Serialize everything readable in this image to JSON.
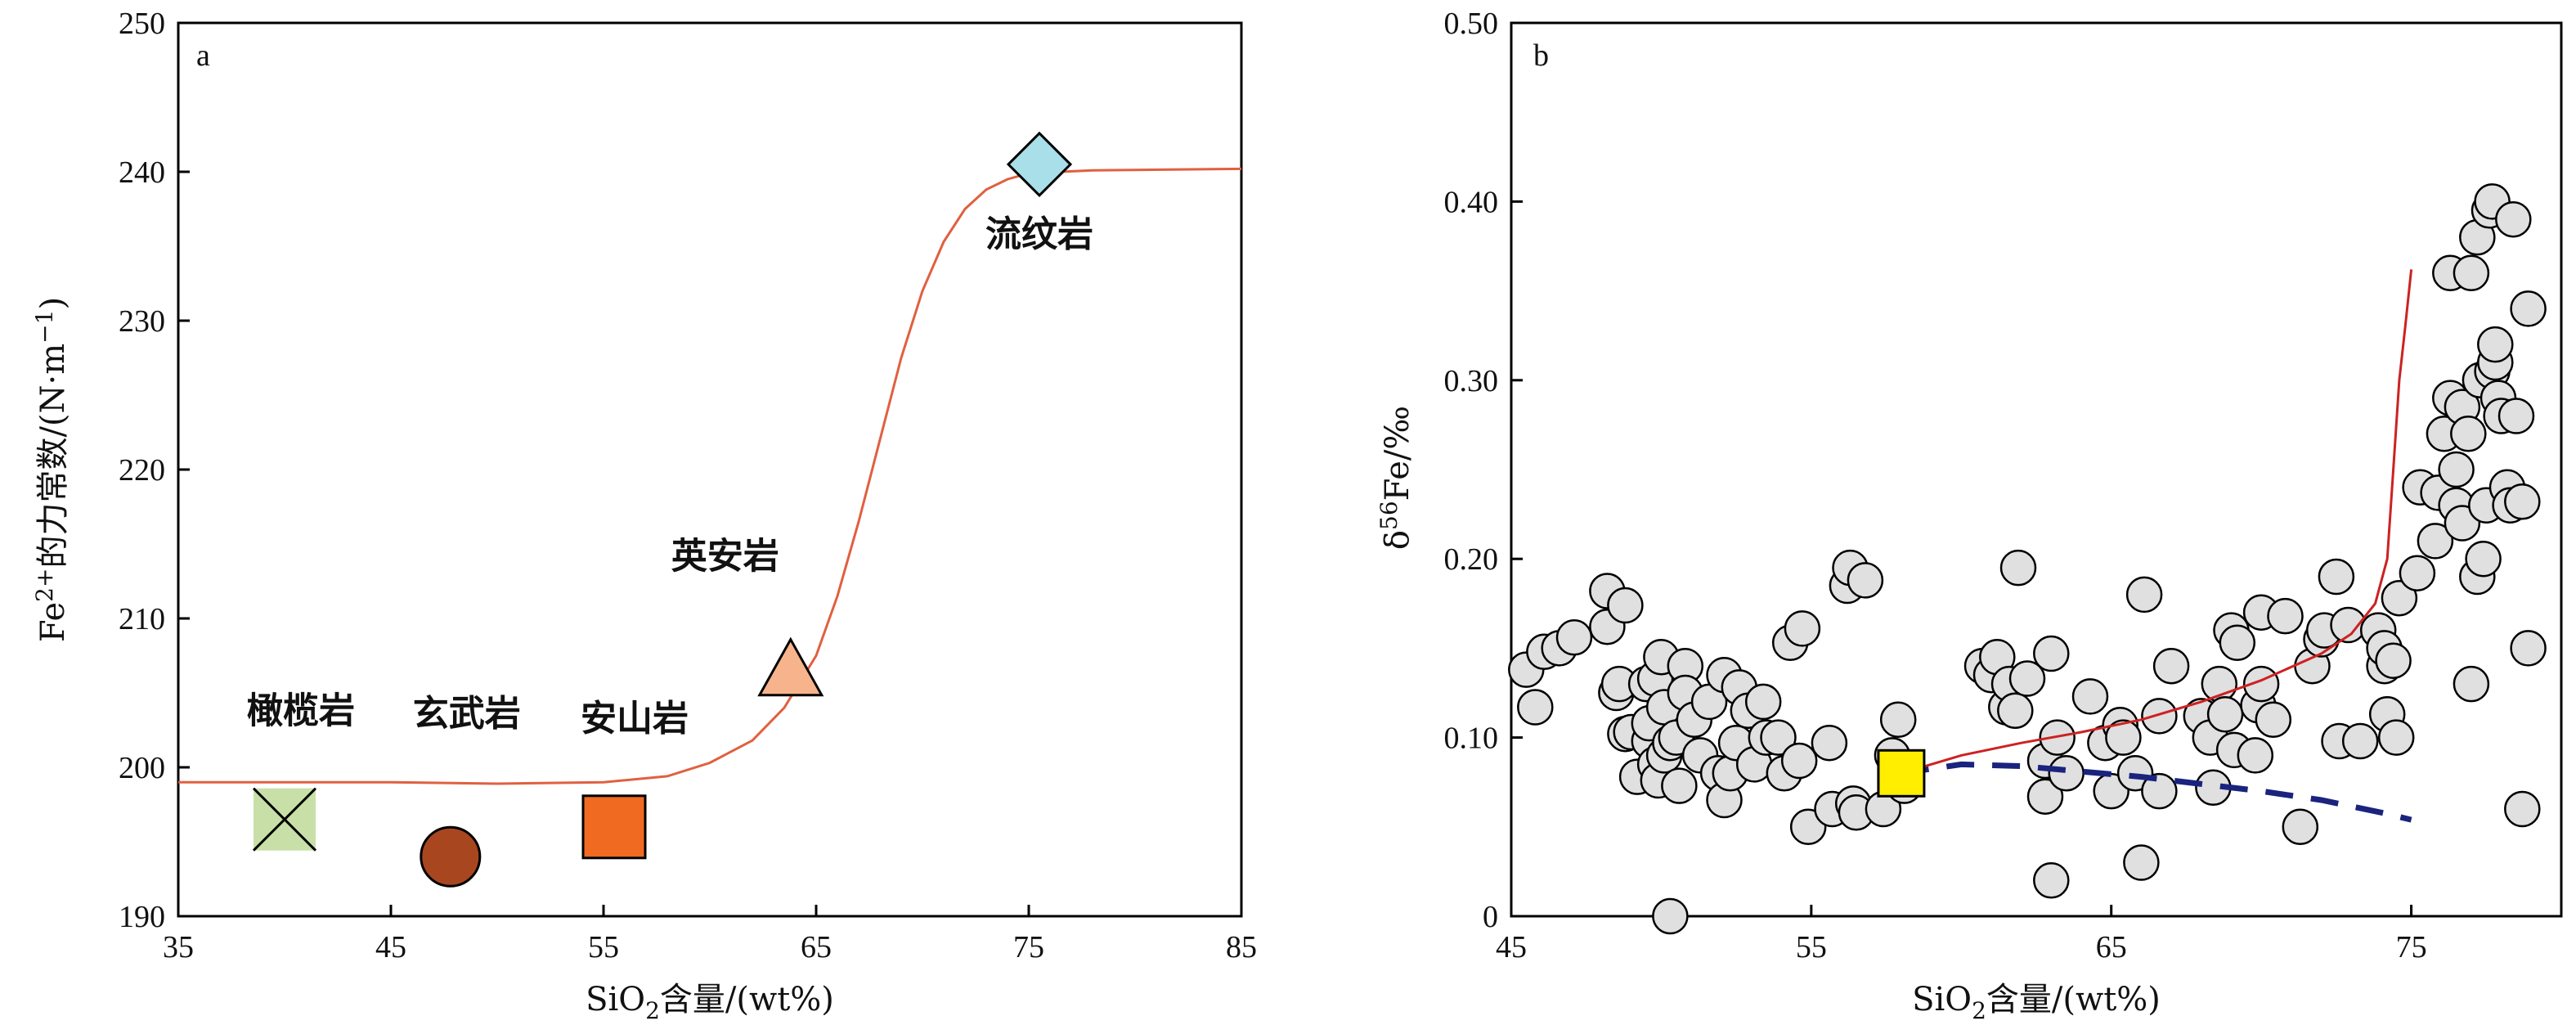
{
  "chart_data": [
    {
      "panel": "a",
      "type": "scatter",
      "xlabel_parts": [
        "SiO",
        "2",
        "含量/(wt%)"
      ],
      "ylabel_parts": [
        "Fe",
        "2+",
        "的力常数/(N·m",
        "−1",
        ")"
      ],
      "xlim": [
        35,
        85
      ],
      "ylim": [
        190,
        250
      ],
      "xticks": [
        35,
        45,
        55,
        65,
        75,
        85
      ],
      "yticks": [
        190,
        200,
        210,
        220,
        230,
        240,
        250
      ],
      "grid": false,
      "points": [
        {
          "label": "橄榄岩",
          "x": 40,
          "y": 196.5,
          "marker": "box-x",
          "color": "#c8e0a8"
        },
        {
          "label": "玄武岩",
          "x": 47.8,
          "y": 194,
          "marker": "circle",
          "color": "#a8471f"
        },
        {
          "label": "安山岩",
          "x": 55.5,
          "y": 196,
          "marker": "square",
          "color": "#f06a22"
        },
        {
          "label": "英安岩",
          "x": 63.8,
          "y": 206.5,
          "marker": "triangle",
          "color": "#f7b48c"
        },
        {
          "label": "流纹岩",
          "x": 75.5,
          "y": 240.5,
          "marker": "diamond",
          "color": "#a8dfe8"
        }
      ],
      "curve": {
        "color": "#e06040",
        "points": [
          [
            35,
            199
          ],
          [
            45,
            199
          ],
          [
            50,
            198.9
          ],
          [
            55,
            199
          ],
          [
            58,
            199.4
          ],
          [
            60,
            200.3
          ],
          [
            62,
            201.8
          ],
          [
            63.5,
            204
          ],
          [
            65,
            207.5
          ],
          [
            66,
            211.5
          ],
          [
            67,
            216.5
          ],
          [
            68,
            222
          ],
          [
            69,
            227.5
          ],
          [
            70,
            232
          ],
          [
            71,
            235.3
          ],
          [
            72,
            237.5
          ],
          [
            73,
            238.8
          ],
          [
            74,
            239.5
          ],
          [
            75,
            239.9
          ],
          [
            78,
            240.1
          ],
          [
            85,
            240.2
          ]
        ]
      }
    },
    {
      "panel": "b",
      "type": "scatter",
      "xlabel_parts": [
        "SiO",
        "2",
        "含量/(wt%)"
      ],
      "ylabel_parts": [
        "δ",
        "56",
        "Fe/‰"
      ],
      "xlim": [
        45,
        80
      ],
      "ylim": [
        0,
        0.5
      ],
      "xticks": [
        45,
        55,
        65,
        75
      ],
      "yticks": [
        0,
        0.1,
        0.2,
        0.3,
        0.4,
        0.5
      ],
      "ytick_labels": [
        "0",
        "0.10",
        "0.20",
        "0.30",
        "0.40",
        "0.50"
      ],
      "grid": false,
      "highlight": {
        "x": 58,
        "y": 0.08,
        "marker": "square",
        "color": "#ffee00"
      },
      "red_curve": {
        "color": "#cc2222",
        "points": [
          [
            58,
            0.08
          ],
          [
            60,
            0.09
          ],
          [
            62,
            0.097
          ],
          [
            64,
            0.103
          ],
          [
            66,
            0.11
          ],
          [
            68,
            0.12
          ],
          [
            70,
            0.132
          ],
          [
            72,
            0.147
          ],
          [
            73,
            0.158
          ],
          [
            73.8,
            0.175
          ],
          [
            74.2,
            0.2
          ],
          [
            74.4,
            0.25
          ],
          [
            74.6,
            0.3
          ],
          [
            74.8,
            0.33
          ],
          [
            75,
            0.362
          ]
        ]
      },
      "blue_dashed": {
        "color": "#1a237e",
        "points": [
          [
            58,
            0.08
          ],
          [
            60,
            0.085
          ],
          [
            62,
            0.084
          ],
          [
            64,
            0.081
          ],
          [
            66,
            0.078
          ],
          [
            68,
            0.074
          ],
          [
            70,
            0.07
          ],
          [
            72,
            0.065
          ],
          [
            74,
            0.058
          ],
          [
            75,
            0.054
          ]
        ]
      },
      "points": [
        [
          45.5,
          0.138
        ],
        [
          45.8,
          0.117
        ],
        [
          46.1,
          0.148
        ],
        [
          46.6,
          0.15
        ],
        [
          47.1,
          0.156
        ],
        [
          48.2,
          0.162
        ],
        [
          48.2,
          0.182
        ],
        [
          48.5,
          0.125
        ],
        [
          48.6,
          0.13
        ],
        [
          48.8,
          0.174
        ],
        [
          48.8,
          0.102
        ],
        [
          49.0,
          0.103
        ],
        [
          49.2,
          0.078
        ],
        [
          49.5,
          0.13
        ],
        [
          49.6,
          0.098
        ],
        [
          49.6,
          0.108
        ],
        [
          49.8,
          0.085
        ],
        [
          49.8,
          0.133
        ],
        [
          49.9,
          0.076
        ],
        [
          50.0,
          0.145
        ],
        [
          50.1,
          0.09
        ],
        [
          50.1,
          0.117
        ],
        [
          50.3,
          0.097
        ],
        [
          50.3,
          0.0
        ],
        [
          50.5,
          0.1
        ],
        [
          50.6,
          0.073
        ],
        [
          50.8,
          0.14
        ],
        [
          50.8,
          0.125
        ],
        [
          51.1,
          0.11
        ],
        [
          51.3,
          0.09
        ],
        [
          51.6,
          0.12
        ],
        [
          51.9,
          0.08
        ],
        [
          52.1,
          0.135
        ],
        [
          52.1,
          0.065
        ],
        [
          52.3,
          0.08
        ],
        [
          52.5,
          0.097
        ],
        [
          52.6,
          0.128
        ],
        [
          52.9,
          0.115
        ],
        [
          53.1,
          0.085
        ],
        [
          53.4,
          0.12
        ],
        [
          53.5,
          0.1
        ],
        [
          53.9,
          0.1
        ],
        [
          54.1,
          0.08
        ],
        [
          54.3,
          0.153
        ],
        [
          54.6,
          0.087
        ],
        [
          54.7,
          0.161
        ],
        [
          54.9,
          0.05
        ],
        [
          55.6,
          0.097
        ],
        [
          55.7,
          0.06
        ],
        [
          56.2,
          0.185
        ],
        [
          56.3,
          0.195
        ],
        [
          56.4,
          0.063
        ],
        [
          56.5,
          0.058
        ],
        [
          56.8,
          0.188
        ],
        [
          57.4,
          0.06
        ],
        [
          57.7,
          0.09
        ],
        [
          57.9,
          0.11
        ],
        [
          58.1,
          0.073
        ],
        [
          60.7,
          0.14
        ],
        [
          61.0,
          0.135
        ],
        [
          61.2,
          0.145
        ],
        [
          61.5,
          0.117
        ],
        [
          61.6,
          0.13
        ],
        [
          61.8,
          0.115
        ],
        [
          62.2,
          0.133
        ],
        [
          61.9,
          0.195
        ],
        [
          62.8,
          0.087
        ],
        [
          62.8,
          0.067
        ],
        [
          63.0,
          0.02
        ],
        [
          63.0,
          0.147
        ],
        [
          63.2,
          0.1
        ],
        [
          63.5,
          0.08
        ],
        [
          64.3,
          0.123
        ],
        [
          64.8,
          0.097
        ],
        [
          65.0,
          0.07
        ],
        [
          65.3,
          0.107
        ],
        [
          65.4,
          0.1
        ],
        [
          65.8,
          0.08
        ],
        [
          66.0,
          0.03
        ],
        [
          66.1,
          0.18
        ],
        [
          66.6,
          0.112
        ],
        [
          66.6,
          0.07
        ],
        [
          67.0,
          0.14
        ],
        [
          68.0,
          0.112
        ],
        [
          68.3,
          0.1
        ],
        [
          68.4,
          0.072
        ],
        [
          68.6,
          0.13
        ],
        [
          68.8,
          0.113
        ],
        [
          69.0,
          0.16
        ],
        [
          69.1,
          0.093
        ],
        [
          69.2,
          0.153
        ],
        [
          69.8,
          0.09
        ],
        [
          69.9,
          0.118
        ],
        [
          70.0,
          0.17
        ],
        [
          70.0,
          0.13
        ],
        [
          70.4,
          0.11
        ],
        [
          70.8,
          0.168
        ],
        [
          71.3,
          0.05
        ],
        [
          71.7,
          0.14
        ],
        [
          72.0,
          0.155
        ],
        [
          72.1,
          0.16
        ],
        [
          72.5,
          0.19
        ],
        [
          72.6,
          0.098
        ],
        [
          72.9,
          0.163
        ],
        [
          73.3,
          0.098
        ],
        [
          73.9,
          0.16
        ],
        [
          74.1,
          0.14
        ],
        [
          74.1,
          0.15
        ],
        [
          74.2,
          0.113
        ],
        [
          74.4,
          0.143
        ],
        [
          74.5,
          0.1
        ],
        [
          74.6,
          0.178
        ],
        [
          75.2,
          0.192
        ],
        [
          75.3,
          0.24
        ],
        [
          75.8,
          0.21
        ],
        [
          75.9,
          0.237
        ],
        [
          76.1,
          0.27
        ],
        [
          76.3,
          0.29
        ],
        [
          76.3,
          0.36
        ],
        [
          76.5,
          0.23
        ],
        [
          76.5,
          0.25
        ],
        [
          76.7,
          0.22
        ],
        [
          76.7,
          0.285
        ],
        [
          76.9,
          0.27
        ],
        [
          77.0,
          0.13
        ],
        [
          77.0,
          0.36
        ],
        [
          77.2,
          0.19
        ],
        [
          77.2,
          0.38
        ],
        [
          77.3,
          0.3
        ],
        [
          77.4,
          0.2
        ],
        [
          77.5,
          0.23
        ],
        [
          77.6,
          0.395
        ],
        [
          77.7,
          0.305
        ],
        [
          77.7,
          0.4
        ],
        [
          77.8,
          0.31
        ],
        [
          77.8,
          0.32
        ],
        [
          77.9,
          0.29
        ],
        [
          78.0,
          0.28
        ],
        [
          78.2,
          0.24
        ],
        [
          78.3,
          0.23
        ],
        [
          78.4,
          0.39
        ],
        [
          78.5,
          0.28
        ],
        [
          78.7,
          0.232
        ],
        [
          78.9,
          0.15
        ],
        [
          78.9,
          0.34
        ],
        [
          78.7,
          0.06
        ]
      ]
    }
  ]
}
